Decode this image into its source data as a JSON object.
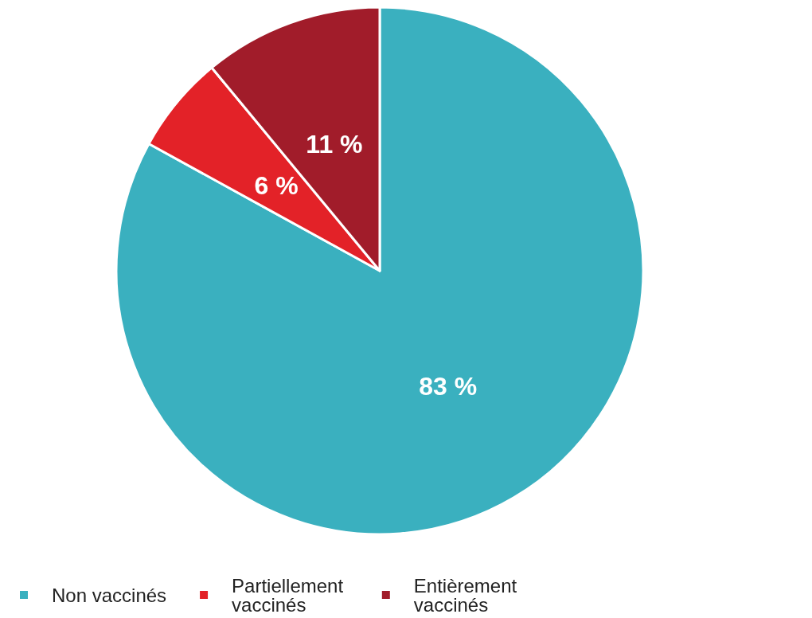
{
  "chart_data": {
    "type": "pie",
    "categories": [
      "Non vaccinés",
      "Partiellement vaccinés",
      "Entièrement vaccinés"
    ],
    "values": [
      83,
      6,
      11
    ],
    "colors": [
      "#3ab0bf",
      "#e32228",
      "#a11c2a"
    ],
    "value_labels": [
      "83 %",
      "6 %",
      "11 %"
    ],
    "legend": "bottom"
  }
}
